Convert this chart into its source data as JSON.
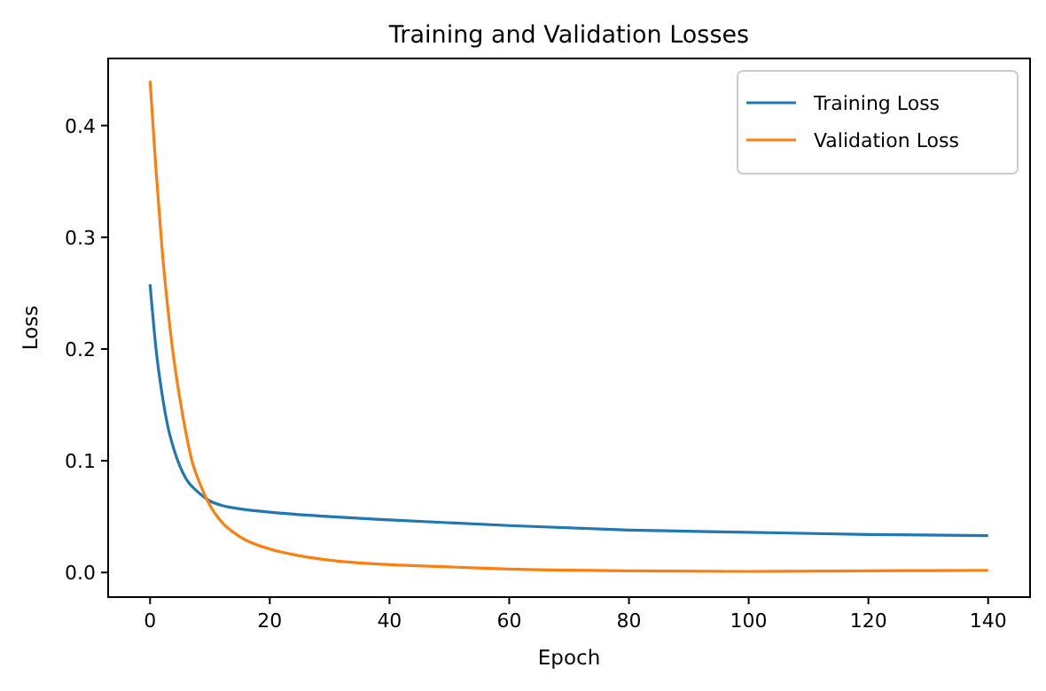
{
  "chart_data": {
    "type": "line",
    "title": "Training and Validation Losses",
    "xlabel": "Epoch",
    "ylabel": "Loss",
    "xlim": [
      -7,
      147
    ],
    "xticks": [
      0,
      20,
      40,
      60,
      80,
      100,
      120,
      140
    ],
    "ylim": [
      -0.022,
      0.46
    ],
    "yticks": [
      {
        "value": 0,
        "label": "0.0"
      },
      0.1,
      0.2,
      0.3,
      0.4
    ],
    "grid": false,
    "legend": "top right",
    "series": [
      {
        "name": "Training Loss",
        "color": "#1f77b4",
        "x": [
          0,
          1,
          2,
          3,
          4,
          5,
          6,
          8,
          10,
          12,
          15,
          20,
          30,
          40,
          60,
          80,
          100,
          120,
          140
        ],
        "values": [
          0.258,
          0.2,
          0.16,
          0.13,
          0.11,
          0.095,
          0.084,
          0.072,
          0.064,
          0.06,
          0.057,
          0.054,
          0.05,
          0.047,
          0.042,
          0.038,
          0.036,
          0.034,
          0.033
        ]
      },
      {
        "name": "Validation Loss",
        "color": "#ff7f0e",
        "x": [
          0,
          1,
          2,
          3,
          4,
          5,
          6,
          7,
          8,
          9,
          10,
          12,
          15,
          20,
          25,
          30,
          40,
          50,
          60,
          80,
          100,
          120,
          140
        ],
        "values": [
          0.44,
          0.36,
          0.29,
          0.235,
          0.19,
          0.155,
          0.125,
          0.1,
          0.084,
          0.071,
          0.06,
          0.045,
          0.032,
          0.021,
          0.015,
          0.011,
          0.007,
          0.005,
          0.003,
          0.0015,
          0.001,
          0.0015,
          0.002
        ]
      }
    ]
  }
}
